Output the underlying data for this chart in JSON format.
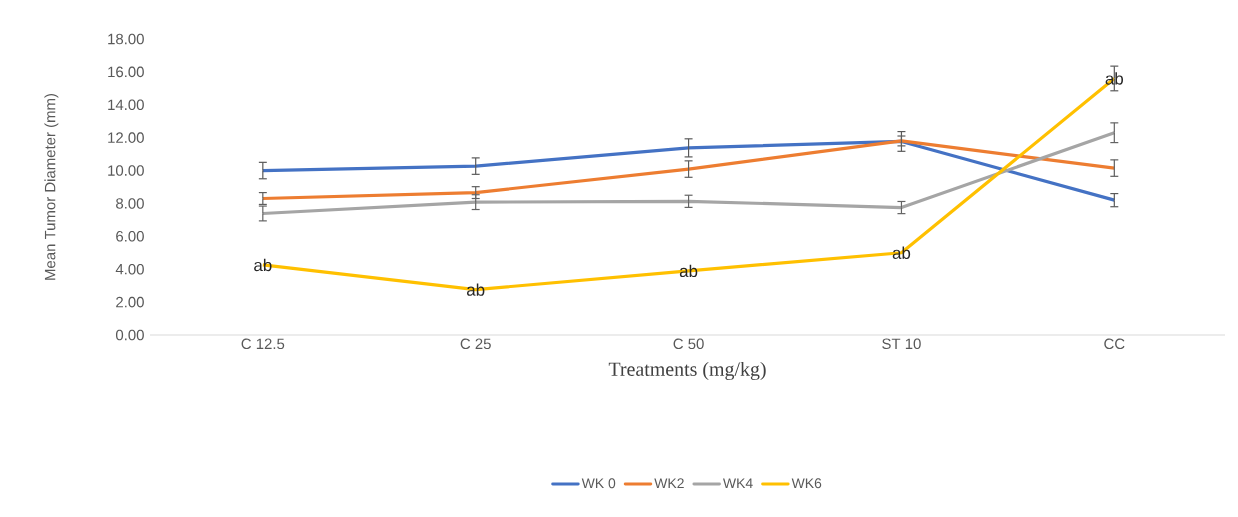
{
  "chart_data": {
    "type": "line",
    "xlabel": "Treatments (mg/kg)",
    "ylabel": "Mean Tumor Diameter (mm)",
    "categories": [
      "C 12.5",
      "C 25",
      "C 50",
      "ST 10",
      "CC"
    ],
    "series": [
      {
        "name": "WK 0",
        "color": "#4472c4",
        "values": [
          10.0,
          10.27,
          11.38,
          11.77,
          8.2
        ],
        "errors": [
          0.5,
          0.5,
          0.55,
          0.6,
          0.4
        ]
      },
      {
        "name": "WK2",
        "color": "#ed7d31",
        "values": [
          8.3,
          8.66,
          10.09,
          11.8,
          10.15
        ],
        "errors": [
          0.36,
          0.36,
          0.5,
          0.3,
          0.5
        ]
      },
      {
        "name": "WK4",
        "color": "#a5a5a5",
        "values": [
          7.39,
          8.08,
          8.13,
          7.75,
          12.3
        ],
        "errors": [
          0.45,
          0.45,
          0.37,
          0.37,
          0.6
        ]
      },
      {
        "name": "WK6",
        "color": "#ffc000",
        "values": [
          4.26,
          2.76,
          3.9,
          5.0,
          15.6
        ],
        "errors": [
          null,
          null,
          null,
          null,
          0.75
        ]
      }
    ],
    "annotations": [
      {
        "text": "ab",
        "x": "C 12.5",
        "y": 4.26
      },
      {
        "text": "ab",
        "x": "C 25",
        "y": 2.76
      },
      {
        "text": "ab",
        "x": "C 50",
        "y": 3.9
      },
      {
        "text": "ab",
        "x": "ST 10",
        "y": 5.0
      },
      {
        "text": "ab",
        "x": "CC",
        "y": 15.6
      }
    ],
    "ylim": [
      0,
      18
    ],
    "yticks": [
      {
        "value": 0,
        "label": "0.00"
      },
      {
        "value": 2,
        "label": "2.00"
      },
      {
        "value": 4,
        "label": "4.00"
      },
      {
        "value": 6,
        "label": "6.00"
      },
      {
        "value": 8,
        "label": "8.00"
      },
      {
        "value": 10,
        "label": "10.00"
      },
      {
        "value": 12,
        "label": "12.00"
      },
      {
        "value": 14,
        "label": "14.00"
      },
      {
        "value": 16,
        "label": "16.00"
      },
      {
        "value": 18,
        "label": "18.00"
      }
    ],
    "grid": false,
    "legend": "bottom",
    "marker": "none",
    "line_style": "solid"
  }
}
